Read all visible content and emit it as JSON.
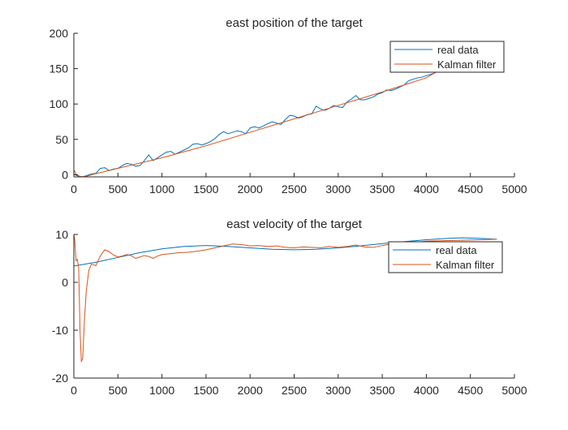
{
  "colors": {
    "real": "#0072BD",
    "kalman": "#D95319",
    "axis": "#262626",
    "background": "#ffffff"
  },
  "chart_data": [
    {
      "type": "line",
      "title": "east position of the target",
      "xlabel": "",
      "ylabel": "",
      "xlim": [
        0,
        5000
      ],
      "ylim": [
        -3,
        200
      ],
      "xticks": [
        0,
        500,
        1000,
        1500,
        2000,
        2500,
        3000,
        3500,
        4000,
        4500,
        5000
      ],
      "yticks": [
        0,
        50,
        100,
        150,
        200
      ],
      "grid": false,
      "legend_position": "top-right",
      "series": [
        {
          "name": "real data",
          "color": "#0072BD",
          "points": [
            [
              0,
              1
            ],
            [
              50,
              -2
            ],
            [
              100,
              -3
            ],
            [
              150,
              -1
            ],
            [
              200,
              1
            ],
            [
              250,
              2
            ],
            [
              300,
              9
            ],
            [
              350,
              10
            ],
            [
              400,
              6
            ],
            [
              450,
              8
            ],
            [
              500,
              9
            ],
            [
              550,
              13
            ],
            [
              600,
              16
            ],
            [
              650,
              15
            ],
            [
              700,
              12
            ],
            [
              750,
              13
            ],
            [
              800,
              20
            ],
            [
              850,
              28
            ],
            [
              900,
              20
            ],
            [
              950,
              24
            ],
            [
              1000,
              28
            ],
            [
              1050,
              32
            ],
            [
              1100,
              33
            ],
            [
              1150,
              29
            ],
            [
              1200,
              32
            ],
            [
              1250,
              35
            ],
            [
              1300,
              38
            ],
            [
              1350,
              43
            ],
            [
              1400,
              44
            ],
            [
              1450,
              42
            ],
            [
              1500,
              44
            ],
            [
              1550,
              47
            ],
            [
              1600,
              51
            ],
            [
              1650,
              57
            ],
            [
              1700,
              61
            ],
            [
              1750,
              58
            ],
            [
              1800,
              60
            ],
            [
              1850,
              62
            ],
            [
              1900,
              61
            ],
            [
              1950,
              58
            ],
            [
              2000,
              66
            ],
            [
              2050,
              68
            ],
            [
              2100,
              66
            ],
            [
              2150,
              69
            ],
            [
              2200,
              72
            ],
            [
              2250,
              75
            ],
            [
              2300,
              73
            ],
            [
              2350,
              71
            ],
            [
              2400,
              78
            ],
            [
              2450,
              84
            ],
            [
              2500,
              83
            ],
            [
              2550,
              80
            ],
            [
              2600,
              82
            ],
            [
              2650,
              85
            ],
            [
              2700,
              86
            ],
            [
              2750,
              97
            ],
            [
              2800,
              93
            ],
            [
              2850,
              91
            ],
            [
              2900,
              94
            ],
            [
              2950,
              98
            ],
            [
              3000,
              96
            ],
            [
              3050,
              95
            ],
            [
              3100,
              103
            ],
            [
              3150,
              107
            ],
            [
              3200,
              112
            ],
            [
              3250,
              106
            ],
            [
              3300,
              106
            ],
            [
              3350,
              108
            ],
            [
              3400,
              110
            ],
            [
              3450,
              114
            ],
            [
              3500,
              116
            ],
            [
              3550,
              120
            ],
            [
              3600,
              119
            ],
            [
              3650,
              121
            ],
            [
              3700,
              124
            ],
            [
              3750,
              127
            ],
            [
              3800,
              133
            ],
            [
              3850,
              135
            ],
            [
              3900,
              137
            ],
            [
              3950,
              138
            ],
            [
              4000,
              140
            ],
            [
              4050,
              142
            ],
            [
              4100,
              144
            ],
            [
              4150,
              148
            ]
          ]
        },
        {
          "name": "Kalman filter",
          "color": "#D95319",
          "points": [
            [
              0,
              7
            ],
            [
              30,
              0
            ],
            [
              80,
              -3
            ],
            [
              150,
              -2
            ],
            [
              200,
              0
            ],
            [
              300,
              3
            ],
            [
              500,
              9
            ],
            [
              1000,
              24
            ],
            [
              1500,
              41
            ],
            [
              2000,
              60
            ],
            [
              2500,
              79
            ],
            [
              3000,
              98
            ],
            [
              3500,
              117
            ],
            [
              4000,
              137
            ],
            [
              4150,
              148
            ]
          ]
        }
      ]
    },
    {
      "type": "line",
      "title": "east velocity of the target",
      "xlabel": "",
      "ylabel": "",
      "xlim": [
        0,
        5000
      ],
      "ylim": [
        -20,
        10
      ],
      "xticks": [
        0,
        500,
        1000,
        1500,
        2000,
        2500,
        3000,
        3500,
        4000,
        4500,
        5000
      ],
      "yticks": [
        -20,
        -10,
        0,
        10
      ],
      "grid": false,
      "legend_position": "top-right",
      "series": [
        {
          "name": "real data",
          "color": "#0072BD",
          "points": [
            [
              0,
              3.4
            ],
            [
              250,
              4.2
            ],
            [
              500,
              5.2
            ],
            [
              750,
              6.2
            ],
            [
              1000,
              7.0
            ],
            [
              1250,
              7.5
            ],
            [
              1500,
              7.7
            ],
            [
              1750,
              7.5
            ],
            [
              2000,
              7.2
            ],
            [
              2250,
              6.9
            ],
            [
              2500,
              6.8
            ],
            [
              2750,
              6.9
            ],
            [
              3000,
              7.2
            ],
            [
              3250,
              7.6
            ],
            [
              3500,
              8.1
            ],
            [
              3750,
              8.5
            ],
            [
              4000,
              8.9
            ],
            [
              4250,
              9.2
            ],
            [
              4400,
              9.3
            ],
            [
              4600,
              9.2
            ],
            [
              4800,
              9.0
            ]
          ]
        },
        {
          "name": "Kalman filter",
          "color": "#D95319",
          "points": [
            [
              0,
              10
            ],
            [
              10,
              9
            ],
            [
              25,
              4.5
            ],
            [
              40,
              4.8
            ],
            [
              55,
              3
            ],
            [
              70,
              -10
            ],
            [
              85,
              -16.5
            ],
            [
              100,
              -16
            ],
            [
              120,
              -8
            ],
            [
              140,
              -2
            ],
            [
              170,
              2.5
            ],
            [
              200,
              3.8
            ],
            [
              250,
              3.5
            ],
            [
              300,
              5.5
            ],
            [
              350,
              6.8
            ],
            [
              400,
              6.4
            ],
            [
              450,
              5.7
            ],
            [
              500,
              5.3
            ],
            [
              550,
              5.5
            ],
            [
              600,
              5.8
            ],
            [
              650,
              5.6
            ],
            [
              700,
              5.0
            ],
            [
              750,
              5.3
            ],
            [
              800,
              5.6
            ],
            [
              850,
              5.4
            ],
            [
              900,
              5.0
            ],
            [
              950,
              5.5
            ],
            [
              1000,
              5.8
            ],
            [
              1100,
              6.0
            ],
            [
              1200,
              6.2
            ],
            [
              1300,
              6.3
            ],
            [
              1400,
              6.5
            ],
            [
              1500,
              6.8
            ],
            [
              1600,
              7.2
            ],
            [
              1700,
              7.6
            ],
            [
              1800,
              8.0
            ],
            [
              1900,
              7.9
            ],
            [
              2000,
              7.6
            ],
            [
              2100,
              7.7
            ],
            [
              2200,
              7.5
            ],
            [
              2300,
              7.6
            ],
            [
              2400,
              7.3
            ],
            [
              2500,
              7.2
            ],
            [
              2600,
              7.4
            ],
            [
              2700,
              7.3
            ],
            [
              2800,
              7.2
            ],
            [
              2900,
              7.5
            ],
            [
              3000,
              7.3
            ],
            [
              3100,
              7.5
            ],
            [
              3200,
              7.8
            ],
            [
              3300,
              7.4
            ],
            [
              3400,
              7.3
            ],
            [
              3500,
              7.7
            ],
            [
              3600,
              8.0
            ],
            [
              3700,
              8.4
            ],
            [
              3800,
              8.2
            ],
            [
              3900,
              8.4
            ],
            [
              4000,
              8.6
            ],
            [
              4200,
              8.7
            ],
            [
              4400,
              8.8
            ],
            [
              4600,
              8.9
            ],
            [
              4800,
              9.0
            ]
          ]
        }
      ]
    }
  ]
}
